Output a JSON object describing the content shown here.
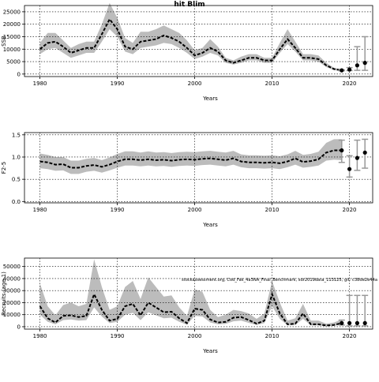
{
  "figure_title": "hit Blim",
  "annotation": "stockassessment.org, Cod_Fak_4a3NA_Final_Benchmark, sdr2019data_113125, git: c38de2e44a",
  "chart_data": [
    {
      "type": "line",
      "ylabel": "SSB",
      "xlabel": "Years",
      "xlim": [
        1978,
        2023
      ],
      "ylim": [
        -1000,
        27500
      ],
      "xticks": [
        1980,
        1990,
        2000,
        2010,
        2020
      ],
      "yticks": [
        0,
        5000,
        10000,
        15000,
        20000,
        25000
      ],
      "ytick_labels": [
        "0",
        "5000",
        "10000",
        "15000",
        "20000",
        "25000"
      ],
      "grid": "dotted at ticks",
      "band_color": "#bcbcbc",
      "line_color": "#000000",
      "x": [
        1980,
        1981,
        1982,
        1983,
        1984,
        1985,
        1986,
        1987,
        1988,
        1989,
        1990,
        1991,
        1992,
        1993,
        1994,
        1995,
        1996,
        1997,
        1998,
        1999,
        2000,
        2001,
        2002,
        2003,
        2004,
        2005,
        2006,
        2007,
        2008,
        2009,
        2010,
        2011,
        2012,
        2013,
        2014,
        2015,
        2016,
        2017,
        2018,
        2019
      ],
      "estimate": [
        10000,
        12500,
        13000,
        11000,
        8500,
        9500,
        10500,
        10500,
        16000,
        22000,
        18000,
        11000,
        10000,
        13000,
        13500,
        14000,
        15500,
        14500,
        13000,
        10500,
        7500,
        8500,
        10500,
        9000,
        5500,
        4500,
        5500,
        6500,
        6500,
        5500,
        5500,
        10000,
        14000,
        10500,
        6500,
        6500,
        6000,
        3500,
        2000,
        1500
      ],
      "lower": [
        8000,
        10000,
        10500,
        8500,
        6500,
        7500,
        8500,
        8500,
        13000,
        18000,
        15000,
        9000,
        8000,
        10500,
        11000,
        11500,
        12500,
        12000,
        10500,
        8500,
        6000,
        7000,
        8500,
        7500,
        4500,
        3800,
        4500,
        5500,
        5500,
        4500,
        4500,
        8500,
        12000,
        9000,
        5500,
        5500,
        5000,
        2800,
        1600,
        1200
      ],
      "upper": [
        12500,
        16500,
        16500,
        13500,
        10500,
        12000,
        13000,
        13000,
        20000,
        28500,
        22500,
        14500,
        12500,
        17000,
        17000,
        18000,
        19500,
        18000,
        16500,
        13500,
        9500,
        10500,
        14000,
        11000,
        6500,
        5500,
        7000,
        8000,
        8000,
        6500,
        6500,
        12500,
        18000,
        13000,
        8000,
        8000,
        7500,
        4500,
        2500,
        1900
      ],
      "forecast": [
        {
          "x": 2019,
          "estimate": 1500,
          "lower": 1300,
          "upper": 1700
        },
        {
          "x": 2020,
          "estimate": 1800,
          "lower": 1400,
          "upper": 2600
        },
        {
          "x": 2021,
          "estimate": 3500,
          "lower": 1500,
          "upper": 11000
        },
        {
          "x": 2022,
          "estimate": 4500,
          "lower": 1500,
          "upper": 15000
        }
      ]
    },
    {
      "type": "line",
      "ylabel": "F2-5",
      "xlabel": "Years",
      "xlim": [
        1978,
        2023
      ],
      "ylim": [
        -0.03,
        1.55
      ],
      "xticks": [
        1980,
        1990,
        2000,
        2010,
        2020
      ],
      "yticks": [
        0.0,
        0.5,
        1.0,
        1.5
      ],
      "ytick_labels": [
        "0.0",
        "0.5",
        "1.0",
        "1.5"
      ],
      "grid": "dotted at ticks",
      "band_color": "#bcbcbc",
      "line_color": "#000000",
      "x": [
        1980,
        1981,
        1982,
        1983,
        1984,
        1985,
        1986,
        1987,
        1988,
        1989,
        1990,
        1991,
        1992,
        1993,
        1994,
        1995,
        1996,
        1997,
        1998,
        1999,
        2000,
        2001,
        2002,
        2003,
        2004,
        2005,
        2006,
        2007,
        2008,
        2009,
        2010,
        2011,
        2012,
        2013,
        2014,
        2015,
        2016,
        2017,
        2018,
        2019
      ],
      "estimate": [
        0.9,
        0.88,
        0.83,
        0.84,
        0.76,
        0.76,
        0.8,
        0.82,
        0.78,
        0.83,
        0.9,
        0.95,
        0.95,
        0.93,
        0.95,
        0.93,
        0.94,
        0.92,
        0.94,
        0.95,
        0.94,
        0.96,
        0.97,
        0.95,
        0.93,
        0.97,
        0.9,
        0.88,
        0.88,
        0.87,
        0.88,
        0.86,
        0.9,
        0.97,
        0.89,
        0.91,
        0.95,
        1.1,
        1.15,
        1.15
      ],
      "lower": [
        0.75,
        0.73,
        0.69,
        0.7,
        0.62,
        0.62,
        0.67,
        0.69,
        0.65,
        0.7,
        0.76,
        0.81,
        0.81,
        0.79,
        0.81,
        0.79,
        0.8,
        0.78,
        0.8,
        0.81,
        0.8,
        0.82,
        0.83,
        0.81,
        0.79,
        0.83,
        0.77,
        0.75,
        0.75,
        0.74,
        0.75,
        0.73,
        0.77,
        0.83,
        0.76,
        0.78,
        0.81,
        0.92,
        0.94,
        0.93
      ],
      "upper": [
        1.08,
        1.05,
        1.0,
        1.0,
        0.92,
        0.92,
        0.96,
        0.98,
        0.93,
        0.99,
        1.07,
        1.13,
        1.13,
        1.1,
        1.13,
        1.1,
        1.11,
        1.09,
        1.11,
        1.12,
        1.11,
        1.13,
        1.14,
        1.12,
        1.1,
        1.14,
        1.06,
        1.04,
        1.04,
        1.03,
        1.04,
        1.02,
        1.06,
        1.14,
        1.05,
        1.07,
        1.12,
        1.32,
        1.4,
        1.4
      ],
      "forecast": [
        {
          "x": 2019,
          "estimate": 1.15,
          "lower": 0.88,
          "upper": 1.38
        },
        {
          "x": 2020,
          "estimate": 0.73,
          "lower": 0.55,
          "upper": 1.03
        },
        {
          "x": 2021,
          "estimate": 0.98,
          "lower": 0.7,
          "upper": 1.38
        },
        {
          "x": 2022,
          "estimate": 1.1,
          "lower": 0.75,
          "upper": 1.4
        }
      ]
    },
    {
      "type": "line",
      "ylabel": "Recruits (age 1)",
      "xlabel": "Years",
      "xlim": [
        1978,
        2023
      ],
      "ylim": [
        -2000,
        57000
      ],
      "xticks": [
        1980,
        1990,
        2000,
        2010,
        2020
      ],
      "yticks": [
        0,
        10000,
        20000,
        30000,
        40000,
        50000
      ],
      "ytick_labels": [
        "0",
        "10000",
        "20000",
        "30000",
        "40000",
        "50000"
      ],
      "grid": "dotted at ticks",
      "band_color": "#bcbcbc",
      "line_color": "#000000",
      "x": [
        1980,
        1981,
        1982,
        1983,
        1984,
        1985,
        1986,
        1987,
        1988,
        1989,
        1990,
        1991,
        1992,
        1993,
        1994,
        1995,
        1996,
        1997,
        1998,
        1999,
        2000,
        2001,
        2002,
        2003,
        2004,
        2005,
        2006,
        2007,
        2008,
        2009,
        2010,
        2011,
        2012,
        2013,
        2014,
        2015,
        2016,
        2017,
        2018,
        2019
      ],
      "estimate": [
        17000,
        7000,
        3500,
        9000,
        9500,
        8000,
        9000,
        27000,
        14000,
        5000,
        6500,
        17000,
        19000,
        9500,
        20000,
        16000,
        12000,
        12500,
        7000,
        3000,
        15000,
        14000,
        6000,
        3500,
        4000,
        7500,
        8000,
        5500,
        2500,
        5000,
        27000,
        11000,
        2000,
        2500,
        11000,
        2000,
        2000,
        1000,
        1500,
        3000
      ],
      "lower": [
        10000,
        4000,
        2000,
        5500,
        6000,
        5000,
        5500,
        16000,
        8500,
        3000,
        4000,
        10000,
        11500,
        5500,
        12000,
        9500,
        7000,
        7500,
        4000,
        1700,
        9000,
        8500,
        3500,
        2000,
        2300,
        4500,
        5000,
        3200,
        1400,
        3000,
        17000,
        6500,
        1100,
        1400,
        6500,
        1100,
        1100,
        500,
        800,
        1600
      ],
      "upper": [
        36000,
        17000,
        9500,
        18000,
        20000,
        17000,
        19000,
        56000,
        33000,
        14000,
        17000,
        33000,
        38000,
        23000,
        41000,
        33000,
        25000,
        26000,
        16000,
        9000,
        31000,
        29000,
        14000,
        8000,
        10000,
        14000,
        13000,
        11000,
        6500,
        11000,
        38000,
        20000,
        5000,
        7000,
        19000,
        5000,
        5000,
        2500,
        3500,
        6000
      ],
      "forecast": [
        {
          "x": 2019,
          "estimate": 3000,
          "lower": 1400,
          "upper": 5500
        },
        {
          "x": 2020,
          "estimate": 3000,
          "lower": 700,
          "upper": 26000
        },
        {
          "x": 2021,
          "estimate": 3000,
          "lower": 700,
          "upper": 26000
        },
        {
          "x": 2022,
          "estimate": 3000,
          "lower": 700,
          "upper": 26000
        }
      ]
    }
  ]
}
